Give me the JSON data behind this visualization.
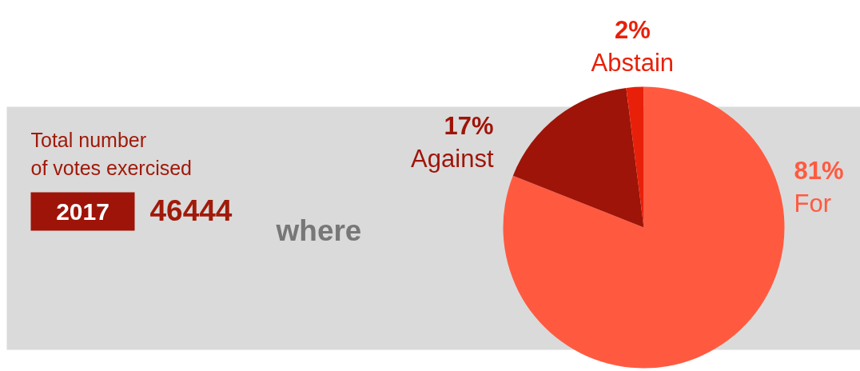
{
  "chart_data": {
    "type": "pie",
    "categories": [
      "For",
      "Against",
      "Abstain"
    ],
    "values": [
      81,
      17,
      2
    ],
    "colors": [
      "#ff5a40",
      "#9e1408",
      "#e8200a"
    ],
    "value_labels": [
      "81%",
      "17%",
      "2%"
    ],
    "annotations": [
      "Total number\nof votes exercised",
      "2017",
      "46444",
      "where"
    ]
  }
}
